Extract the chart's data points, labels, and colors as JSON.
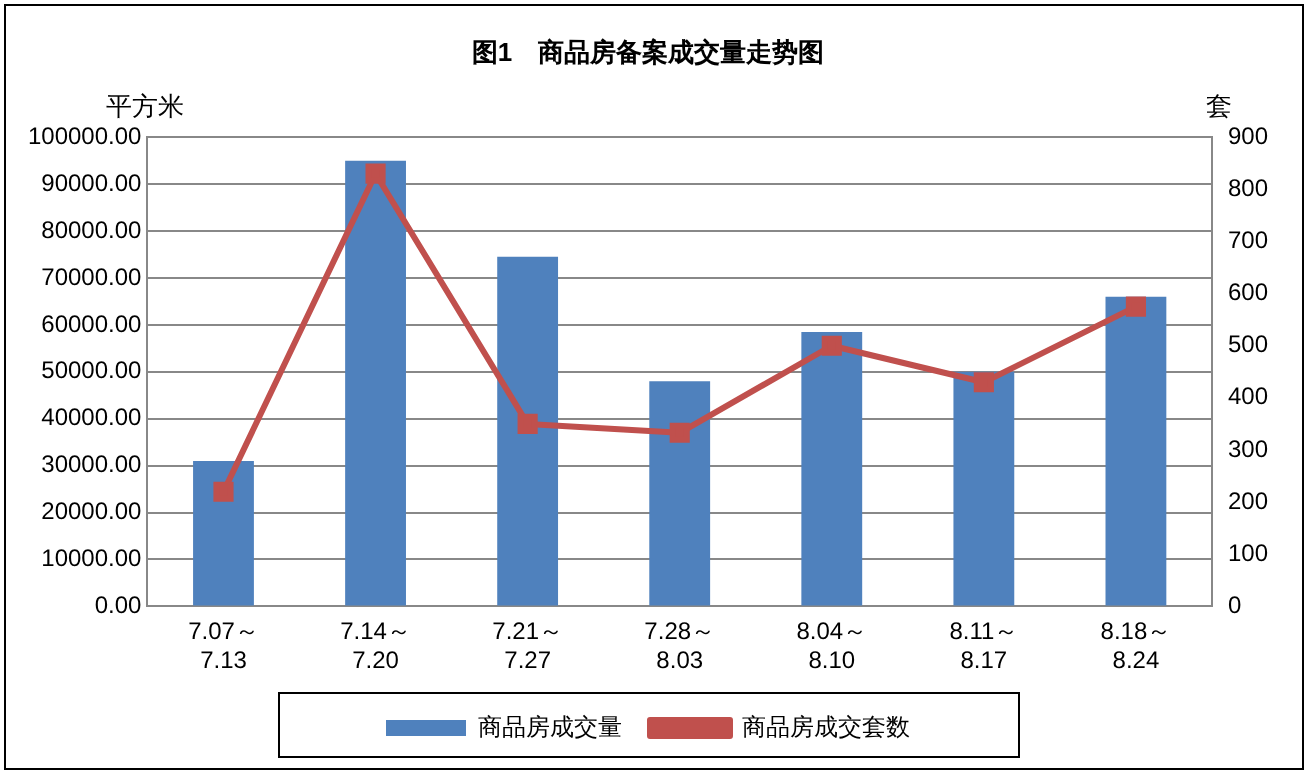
{
  "chart_data": {
    "type": "bar",
    "title": "图1　商品房备案成交量走势图",
    "ylabel": "平方米",
    "y2label": "套",
    "categories": [
      "7.07～\n7.13",
      "7.14～\n7.20",
      "7.21～\n7.27",
      "7.28～\n8.03",
      "8.04～\n8.10",
      "8.11～\n8.17",
      "8.18～\n8.24"
    ],
    "series": [
      {
        "name": "商品房成交量",
        "color": "#4f81bd",
        "values": [
          31000,
          95000,
          74500,
          48000,
          58500,
          50000,
          66000
        ]
      },
      {
        "name": "商品房成交套数",
        "type": "line",
        "axis": "y2",
        "color": "#c0504d",
        "marker": "square",
        "line_style": "solid",
        "values": [
          220,
          830,
          350,
          333,
          500,
          430,
          575
        ]
      }
    ],
    "ylim": [
      0,
      100000
    ],
    "yticks": [
      {
        "value": 0,
        "label": "0.00"
      },
      {
        "value": 10000,
        "label": "10000.00"
      },
      {
        "value": 20000,
        "label": "20000.00"
      },
      {
        "value": 30000,
        "label": "30000.00"
      },
      {
        "value": 40000,
        "label": "40000.00"
      },
      {
        "value": 50000,
        "label": "50000.00"
      },
      {
        "value": 60000,
        "label": "60000.00"
      },
      {
        "value": 70000,
        "label": "70000.00"
      },
      {
        "value": 80000,
        "label": "80000.00"
      },
      {
        "value": 90000,
        "label": "90000.00"
      },
      {
        "value": 100000,
        "label": "100000.00"
      }
    ],
    "y2lim": [
      0,
      900
    ],
    "y2ticks": [
      0,
      100,
      200,
      300,
      400,
      500,
      600,
      700,
      800,
      900
    ],
    "grid": "y",
    "legend": "bottom"
  }
}
